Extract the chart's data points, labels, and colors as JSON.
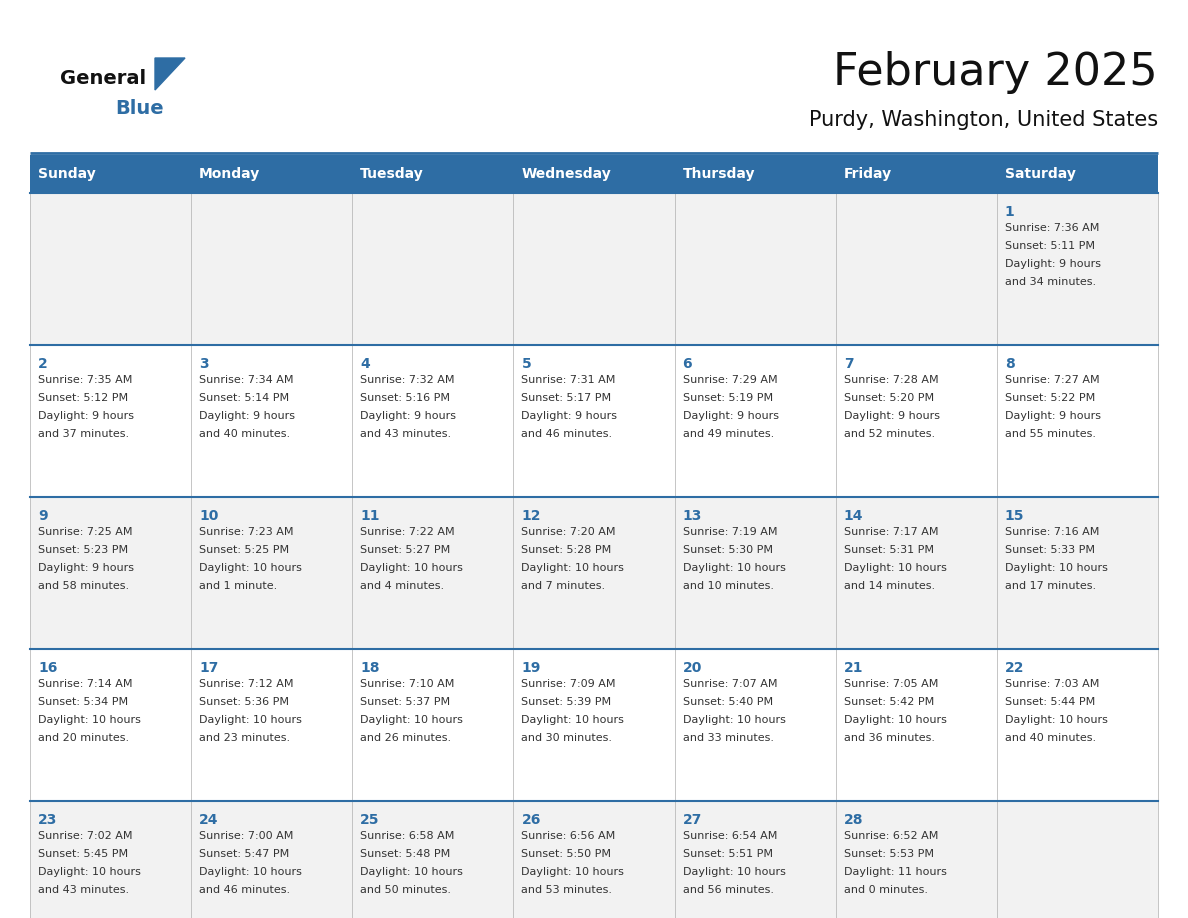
{
  "title": "February 2025",
  "subtitle": "Purdy, Washington, United States",
  "days_of_week": [
    "Sunday",
    "Monday",
    "Tuesday",
    "Wednesday",
    "Thursday",
    "Friday",
    "Saturday"
  ],
  "header_bg": "#2E6DA4",
  "header_text": "#FFFFFF",
  "row_bg_light": "#F2F2F2",
  "row_bg_white": "#FFFFFF",
  "cell_border": "#BBBBBB",
  "day_number_color": "#2E6DA4",
  "text_color": "#333333",
  "title_color": "#111111",
  "subtitle_color": "#111111",
  "logo_general_color": "#111111",
  "logo_blue_color": "#2E6DA4",
  "week_separator_color": "#2E6DA4",
  "calendar": [
    [
      null,
      null,
      null,
      null,
      null,
      null,
      {
        "day": "1",
        "sunrise": "7:36 AM",
        "sunset": "5:11 PM",
        "daylight1": "9 hours",
        "daylight2": "and 34 minutes."
      }
    ],
    [
      {
        "day": "2",
        "sunrise": "7:35 AM",
        "sunset": "5:12 PM",
        "daylight1": "9 hours",
        "daylight2": "and 37 minutes."
      },
      {
        "day": "3",
        "sunrise": "7:34 AM",
        "sunset": "5:14 PM",
        "daylight1": "9 hours",
        "daylight2": "and 40 minutes."
      },
      {
        "day": "4",
        "sunrise": "7:32 AM",
        "sunset": "5:16 PM",
        "daylight1": "9 hours",
        "daylight2": "and 43 minutes."
      },
      {
        "day": "5",
        "sunrise": "7:31 AM",
        "sunset": "5:17 PM",
        "daylight1": "9 hours",
        "daylight2": "and 46 minutes."
      },
      {
        "day": "6",
        "sunrise": "7:29 AM",
        "sunset": "5:19 PM",
        "daylight1": "9 hours",
        "daylight2": "and 49 minutes."
      },
      {
        "day": "7",
        "sunrise": "7:28 AM",
        "sunset": "5:20 PM",
        "daylight1": "9 hours",
        "daylight2": "and 52 minutes."
      },
      {
        "day": "8",
        "sunrise": "7:27 AM",
        "sunset": "5:22 PM",
        "daylight1": "9 hours",
        "daylight2": "and 55 minutes."
      }
    ],
    [
      {
        "day": "9",
        "sunrise": "7:25 AM",
        "sunset": "5:23 PM",
        "daylight1": "9 hours",
        "daylight2": "and 58 minutes."
      },
      {
        "day": "10",
        "sunrise": "7:23 AM",
        "sunset": "5:25 PM",
        "daylight1": "10 hours",
        "daylight2": "and 1 minute."
      },
      {
        "day": "11",
        "sunrise": "7:22 AM",
        "sunset": "5:27 PM",
        "daylight1": "10 hours",
        "daylight2": "and 4 minutes."
      },
      {
        "day": "12",
        "sunrise": "7:20 AM",
        "sunset": "5:28 PM",
        "daylight1": "10 hours",
        "daylight2": "and 7 minutes."
      },
      {
        "day": "13",
        "sunrise": "7:19 AM",
        "sunset": "5:30 PM",
        "daylight1": "10 hours",
        "daylight2": "and 10 minutes."
      },
      {
        "day": "14",
        "sunrise": "7:17 AM",
        "sunset": "5:31 PM",
        "daylight1": "10 hours",
        "daylight2": "and 14 minutes."
      },
      {
        "day": "15",
        "sunrise": "7:16 AM",
        "sunset": "5:33 PM",
        "daylight1": "10 hours",
        "daylight2": "and 17 minutes."
      }
    ],
    [
      {
        "day": "16",
        "sunrise": "7:14 AM",
        "sunset": "5:34 PM",
        "daylight1": "10 hours",
        "daylight2": "and 20 minutes."
      },
      {
        "day": "17",
        "sunrise": "7:12 AM",
        "sunset": "5:36 PM",
        "daylight1": "10 hours",
        "daylight2": "and 23 minutes."
      },
      {
        "day": "18",
        "sunrise": "7:10 AM",
        "sunset": "5:37 PM",
        "daylight1": "10 hours",
        "daylight2": "and 26 minutes."
      },
      {
        "day": "19",
        "sunrise": "7:09 AM",
        "sunset": "5:39 PM",
        "daylight1": "10 hours",
        "daylight2": "and 30 minutes."
      },
      {
        "day": "20",
        "sunrise": "7:07 AM",
        "sunset": "5:40 PM",
        "daylight1": "10 hours",
        "daylight2": "and 33 minutes."
      },
      {
        "day": "21",
        "sunrise": "7:05 AM",
        "sunset": "5:42 PM",
        "daylight1": "10 hours",
        "daylight2": "and 36 minutes."
      },
      {
        "day": "22",
        "sunrise": "7:03 AM",
        "sunset": "5:44 PM",
        "daylight1": "10 hours",
        "daylight2": "and 40 minutes."
      }
    ],
    [
      {
        "day": "23",
        "sunrise": "7:02 AM",
        "sunset": "5:45 PM",
        "daylight1": "10 hours",
        "daylight2": "and 43 minutes."
      },
      {
        "day": "24",
        "sunrise": "7:00 AM",
        "sunset": "5:47 PM",
        "daylight1": "10 hours",
        "daylight2": "and 46 minutes."
      },
      {
        "day": "25",
        "sunrise": "6:58 AM",
        "sunset": "5:48 PM",
        "daylight1": "10 hours",
        "daylight2": "and 50 minutes."
      },
      {
        "day": "26",
        "sunrise": "6:56 AM",
        "sunset": "5:50 PM",
        "daylight1": "10 hours",
        "daylight2": "and 53 minutes."
      },
      {
        "day": "27",
        "sunrise": "6:54 AM",
        "sunset": "5:51 PM",
        "daylight1": "10 hours",
        "daylight2": "and 56 minutes."
      },
      {
        "day": "28",
        "sunrise": "6:52 AM",
        "sunset": "5:53 PM",
        "daylight1": "11 hours",
        "daylight2": "and 0 minutes."
      },
      null
    ]
  ]
}
